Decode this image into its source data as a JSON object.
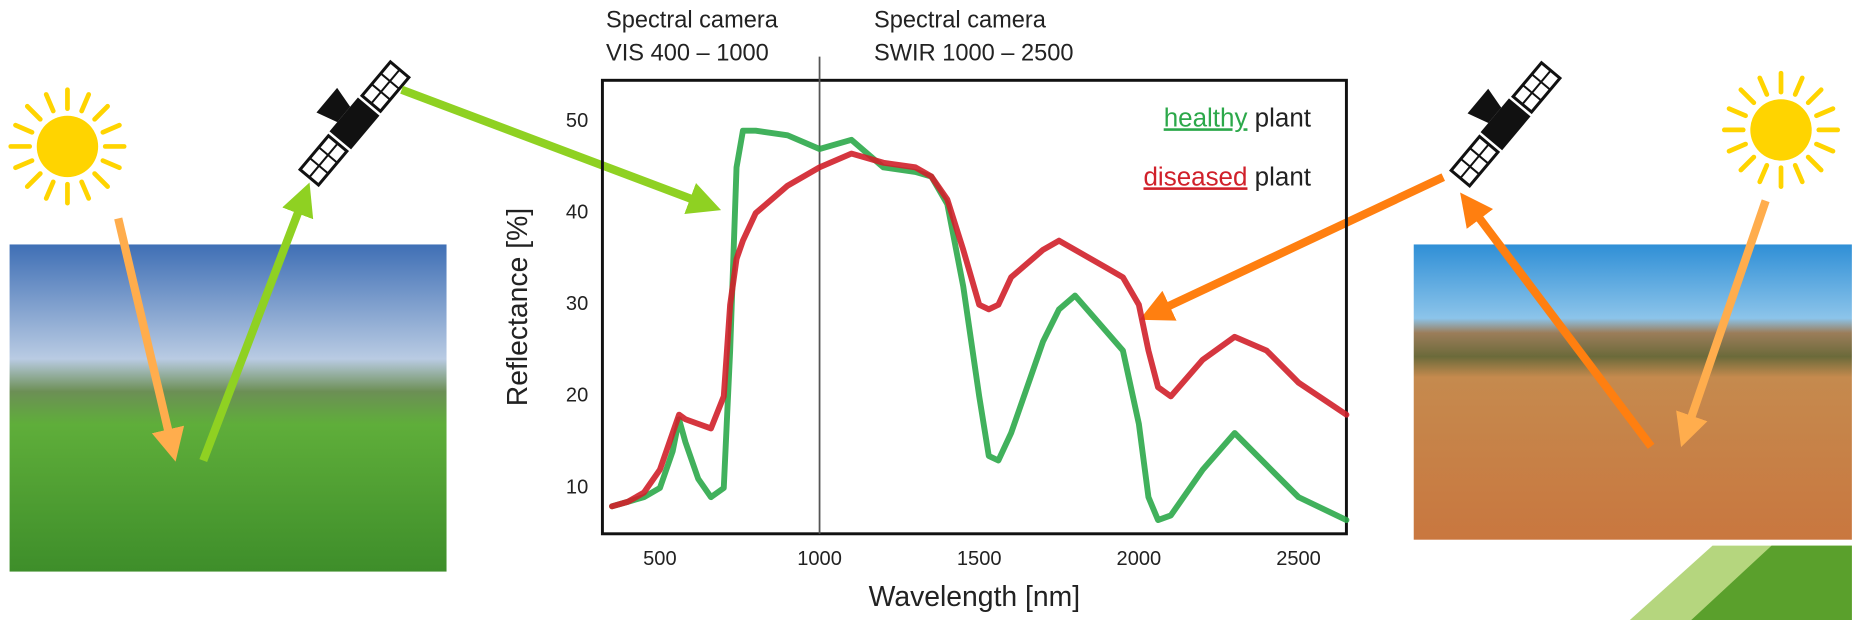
{
  "chart_data": {
    "type": "line",
    "x_label": "Wavelength [nm]",
    "y_label": "Reflectance [%]",
    "annotations": [
      "Spectral camera",
      "VIS 400 – 1000",
      "Spectral camera",
      "SWIR 1000 – 2500"
    ],
    "vlines": [
      1000
    ],
    "x": [
      350,
      400,
      450,
      500,
      540,
      560,
      580,
      620,
      660,
      700,
      720,
      740,
      760,
      800,
      900,
      1000,
      1100,
      1200,
      1300,
      1350,
      1400,
      1450,
      1500,
      1530,
      1560,
      1600,
      1700,
      1750,
      1800,
      1900,
      1950,
      2000,
      2030,
      2060,
      2100,
      2200,
      2300,
      2400,
      2500,
      2650
    ],
    "series": [
      {
        "name": "healthy plant",
        "color": "#2ca84a",
        "values": [
          8,
          8.5,
          9,
          10,
          14,
          17.5,
          15,
          11,
          9,
          10,
          25,
          45,
          49,
          49,
          48.5,
          47,
          48,
          45,
          44.5,
          44,
          41,
          32,
          20,
          13.5,
          13,
          16,
          26,
          29.5,
          31,
          27,
          25,
          17,
          9,
          6.5,
          7,
          12,
          16,
          12.5,
          9,
          6.5
        ]
      },
      {
        "name": "diseased plant",
        "color": "#d0202a",
        "values": [
          8,
          8.5,
          9.5,
          12,
          16,
          18,
          17.5,
          17,
          16.5,
          20,
          30,
          35,
          37,
          40,
          43,
          45,
          46.5,
          45.5,
          45,
          44,
          41.5,
          36,
          30,
          29.5,
          30,
          33,
          36,
          37,
          36,
          34,
          33,
          30,
          25,
          21,
          20,
          24,
          26.5,
          25,
          21.5,
          18
        ]
      }
    ],
    "xlim": [
      320,
      2650
    ],
    "ylim": [
      5,
      54.5
    ],
    "xticks": [
      500,
      1000,
      1500,
      2000,
      2500
    ],
    "yticks": [
      10,
      20,
      30,
      40,
      50
    ],
    "grid": false,
    "legend": "upper right"
  }
}
